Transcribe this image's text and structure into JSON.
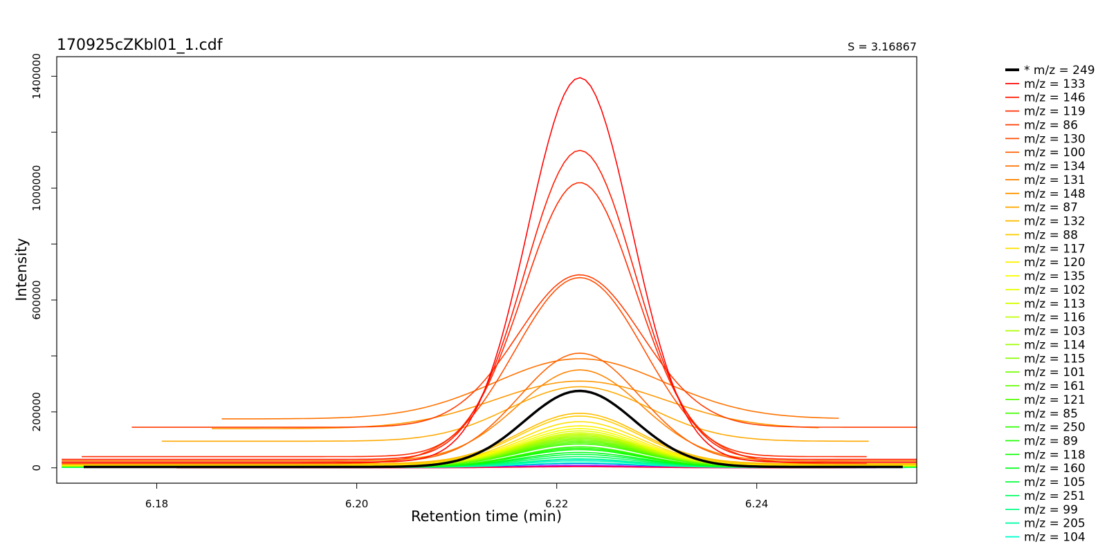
{
  "chart_data": {
    "type": "line",
    "title": "170925cZKbl01_1.cdf",
    "score_label": "S = 3.16867",
    "xlabel": "Retention time (min)",
    "ylabel": "Intensity",
    "xlim": [
      6.17,
      6.256
    ],
    "ylim": [
      -55000,
      1470000
    ],
    "x_ticks": [
      "6.18",
      "6.20",
      "6.22",
      "6.24"
    ],
    "y_ticks": [
      "0",
      "200000",
      "600000",
      "1000000",
      "1400000"
    ],
    "y_minor_ticks": [
      400000,
      800000,
      1200000
    ],
    "grid": false,
    "legend_placement": "right",
    "peak_center": 6.2223,
    "series": [
      {
        "name": "* m/z = 249",
        "color": "#000000",
        "bold": true,
        "peak": 275000,
        "baseline": 3000,
        "sigma": 0.0055,
        "x_start": 6.1727,
        "x_end": 6.2546
      },
      {
        "name": "m/z = 133",
        "color": "#ff0000",
        "peak": 1395000,
        "baseline": 20000,
        "sigma": 0.0052,
        "x_start": 6.1705,
        "x_end": 6.256
      },
      {
        "name": "m/z = 146",
        "color": "#ff1a00",
        "peak": 1135000,
        "baseline": 30000,
        "sigma": 0.0055,
        "x_start": 6.1705,
        "x_end": 6.256
      },
      {
        "name": "m/z = 119",
        "color": "#ff2a00",
        "peak": 1020000,
        "baseline": 40000,
        "sigma": 0.0056,
        "x_start": 6.1725,
        "x_end": 6.251
      },
      {
        "name": "m/z = 86",
        "color": "#ff3b00",
        "peak": 690000,
        "baseline": 145000,
        "sigma": 0.0062,
        "x_start": 6.1775,
        "x_end": 6.256
      },
      {
        "name": "m/z = 130",
        "color": "#ff4d00",
        "peak": 680000,
        "baseline": 15000,
        "sigma": 0.0065,
        "x_start": 6.1705,
        "x_end": 6.251
      },
      {
        "name": "m/z = 100",
        "color": "#ff6000",
        "peak": 410000,
        "baseline": 20000,
        "sigma": 0.006,
        "x_start": 6.1705,
        "x_end": 6.256
      },
      {
        "name": "m/z = 134",
        "color": "#ff7200",
        "peak": 390000,
        "baseline": 175000,
        "sigma": 0.0085,
        "x_start": 6.1865,
        "x_end": 6.2482
      },
      {
        "name": "m/z = 131",
        "color": "#ff8400",
        "peak": 350000,
        "baseline": 25000,
        "sigma": 0.0062,
        "x_start": 6.1705,
        "x_end": 6.256
      },
      {
        "name": "m/z = 148",
        "color": "#ff9700",
        "peak": 310000,
        "baseline": 140000,
        "sigma": 0.0085,
        "x_start": 6.1855,
        "x_end": 6.2462
      },
      {
        "name": "m/z = 87",
        "color": "#ffa900",
        "peak": 290000,
        "baseline": 95000,
        "sigma": 0.007,
        "x_start": 6.1805,
        "x_end": 6.2512
      },
      {
        "name": "m/z = 132",
        "color": "#ffbc00",
        "peak": 195000,
        "baseline": 15000,
        "sigma": 0.006,
        "x_start": 6.1705,
        "x_end": 6.256
      },
      {
        "name": "m/z = 88",
        "color": "#ffce00",
        "peak": 185000,
        "baseline": 12000,
        "sigma": 0.006,
        "x_start": 6.1705,
        "x_end": 6.256
      },
      {
        "name": "m/z = 117",
        "color": "#ffe000",
        "peak": 165000,
        "baseline": 10000,
        "sigma": 0.006,
        "x_start": 6.1705,
        "x_end": 6.256
      },
      {
        "name": "m/z = 120",
        "color": "#fff300",
        "peak": 150000,
        "baseline": 10000,
        "sigma": 0.006,
        "x_start": 6.1705,
        "x_end": 6.256
      },
      {
        "name": "m/z = 135",
        "color": "#f8ff00",
        "peak": 140000,
        "baseline": 9000,
        "sigma": 0.006,
        "x_start": 6.1705,
        "x_end": 6.256
      },
      {
        "name": "m/z = 102",
        "color": "#e6ff00",
        "peak": 132000,
        "baseline": 8000,
        "sigma": 0.006,
        "x_start": 6.1705,
        "x_end": 6.256
      },
      {
        "name": "m/z = 113",
        "color": "#d4ff00",
        "peak": 125000,
        "baseline": 8000,
        "sigma": 0.006,
        "x_start": 6.1705,
        "x_end": 6.256
      },
      {
        "name": "m/z = 116",
        "color": "#c1ff00",
        "peak": 120000,
        "baseline": 8000,
        "sigma": 0.006,
        "x_start": 6.1705,
        "x_end": 6.256
      },
      {
        "name": "m/z = 103",
        "color": "#afff00",
        "peak": 115000,
        "baseline": 7000,
        "sigma": 0.006,
        "x_start": 6.1705,
        "x_end": 6.256
      },
      {
        "name": "m/z = 114",
        "color": "#9cff00",
        "peak": 110000,
        "baseline": 7000,
        "sigma": 0.006,
        "x_start": 6.1705,
        "x_end": 6.256
      },
      {
        "name": "m/z = 115",
        "color": "#8aff00",
        "peak": 105000,
        "baseline": 7000,
        "sigma": 0.006,
        "x_start": 6.1705,
        "x_end": 6.256
      },
      {
        "name": "m/z = 101",
        "color": "#77ff00",
        "peak": 100000,
        "baseline": 6000,
        "sigma": 0.006,
        "x_start": 6.1705,
        "x_end": 6.256
      },
      {
        "name": "m/z = 161",
        "color": "#65ff00",
        "peak": 95000,
        "baseline": 6000,
        "sigma": 0.006,
        "x_start": 6.1705,
        "x_end": 6.256
      },
      {
        "name": "m/z = 121",
        "color": "#53ff00",
        "peak": 90000,
        "baseline": 6000,
        "sigma": 0.006,
        "x_start": 6.1705,
        "x_end": 6.256
      },
      {
        "name": "m/z = 85",
        "color": "#40ff00",
        "peak": 85000,
        "baseline": 5000,
        "sigma": 0.006,
        "x_start": 6.1705,
        "x_end": 6.256
      },
      {
        "name": "m/z = 250",
        "color": "#2eff00",
        "peak": 75000,
        "baseline": 4000,
        "sigma": 0.0058,
        "x_start": 6.1705,
        "x_end": 6.256
      },
      {
        "name": "m/z = 89",
        "color": "#1bff00",
        "peak": 70000,
        "baseline": 4000,
        "sigma": 0.0058,
        "x_start": 6.1705,
        "x_end": 6.256
      },
      {
        "name": "m/z = 118",
        "color": "#09ff00",
        "peak": 65000,
        "baseline": 4000,
        "sigma": 0.0058,
        "x_start": 6.1705,
        "x_end": 6.256
      },
      {
        "name": "m/z = 160",
        "color": "#00ff1a",
        "peak": 55000,
        "baseline": 3000,
        "sigma": 0.0058,
        "x_start": 6.1705,
        "x_end": 6.256
      },
      {
        "name": "m/z = 105",
        "color": "#00ff3d",
        "peak": 48000,
        "baseline": 3000,
        "sigma": 0.0058,
        "x_start": 6.1705,
        "x_end": 6.256
      },
      {
        "name": "m/z = 251",
        "color": "#00ff60",
        "peak": 40000,
        "baseline": 2500,
        "sigma": 0.0058,
        "x_start": 6.1705,
        "x_end": 6.256
      },
      {
        "name": "m/z = 99",
        "color": "#00ff84",
        "peak": 32000,
        "baseline": 2000,
        "sigma": 0.0058,
        "x_start": 6.1705,
        "x_end": 6.256
      },
      {
        "name": "m/z = 205",
        "color": "#00ffa7",
        "peak": 25000,
        "baseline": 2000,
        "sigma": 0.0058,
        "x_start": 6.1705,
        "x_end": 6.256
      },
      {
        "name": "m/z = 104",
        "color": "#00ffcb",
        "peak": 18000,
        "baseline": 1500,
        "sigma": 0.0058,
        "x_start": 6.1705,
        "x_end": 6.256
      }
    ],
    "extra_traces": [
      {
        "color": "#00e5ff",
        "peak": 30000,
        "baseline": 1500,
        "sigma": 0.0058,
        "x_start": 6.1705,
        "x_end": 6.256
      },
      {
        "color": "#0060ff",
        "peak": 15000,
        "baseline": 1000,
        "sigma": 0.0058,
        "x_start": 6.182,
        "x_end": 6.255
      },
      {
        "color": "#8800ff",
        "peak": 8000,
        "baseline": 500,
        "sigma": 0.0058,
        "x_start": 6.182,
        "x_end": 6.252
      },
      {
        "color": "#ff00aa",
        "peak": 5000,
        "baseline": 300,
        "sigma": 0.0058,
        "x_start": 6.182,
        "x_end": 6.25
      },
      {
        "color": "#ff0040",
        "peak": 4000,
        "baseline": 200,
        "sigma": 0.0058,
        "x_start": 6.182,
        "x_end": 6.248
      }
    ]
  }
}
